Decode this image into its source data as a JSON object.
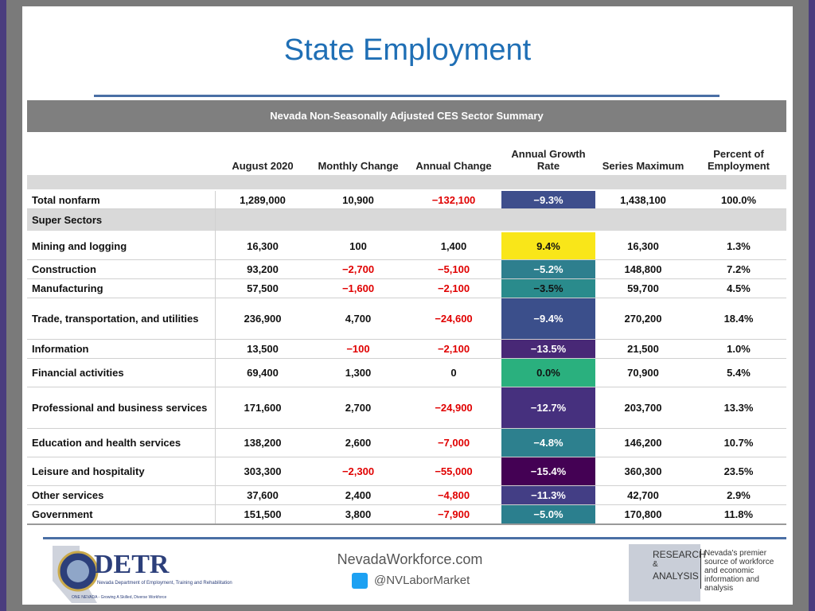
{
  "title": "State Employment",
  "table": {
    "caption": "Nevada Non-Seasonally Adjusted CES Sector Summary",
    "columns": [
      "August 2020",
      "Monthly Change",
      "Annual Change",
      "Annual Growth Rate",
      "Series Maximum",
      "Percent of Employment"
    ],
    "section_label": "Super Sectors",
    "rows": [
      {
        "label": "Total nonfarm",
        "cells": [
          "1,289,000",
          "10,900",
          "−132,100",
          "−9.3%",
          "1,438,100",
          "100.0%"
        ],
        "growth_color": "#3e4e8c"
      },
      {
        "label": "Mining and logging",
        "cells": [
          "16,300",
          "100",
          "1,400",
          "9.4%",
          "16,300",
          "1.3%"
        ],
        "growth_color": "#f9e619"
      },
      {
        "label": "Construction",
        "cells": [
          "93,200",
          "−2,700",
          "−5,100",
          "−5.2%",
          "148,800",
          "7.2%"
        ],
        "growth_color": "#2e7f8e"
      },
      {
        "label": "Manufacturing",
        "cells": [
          "57,500",
          "−1,600",
          "−2,100",
          "−3.5%",
          "59,700",
          "4.5%"
        ],
        "growth_color": "#2a8b8c"
      },
      {
        "label": "Trade, transportation, and utilities",
        "cells": [
          "236,900",
          "4,700",
          "−24,600",
          "−9.4%",
          "270,200",
          "18.4%"
        ],
        "growth_color": "#3b4f8b"
      },
      {
        "label": "Information",
        "cells": [
          "13,500",
          "−100",
          "−2,100",
          "−13.5%",
          "21,500",
          "1.0%"
        ],
        "growth_color": "#482876"
      },
      {
        "label": "Financial activities",
        "cells": [
          "69,400",
          "1,300",
          "0",
          "0.0%",
          "70,900",
          "5.4%"
        ],
        "growth_color": "#2ab07e"
      },
      {
        "label": "Professional and business services",
        "cells": [
          "171,600",
          "2,700",
          "−24,900",
          "−12.7%",
          "203,700",
          "13.3%"
        ],
        "growth_color": "#46307e"
      },
      {
        "label": "Education and health services",
        "cells": [
          "138,200",
          "2,600",
          "−7,000",
          "−4.8%",
          "146,200",
          "10.7%"
        ],
        "growth_color": "#2d808e"
      },
      {
        "label": "Leisure and hospitality",
        "cells": [
          "303,300",
          "−2,300",
          "−55,000",
          "−15.4%",
          "360,300",
          "23.5%"
        ],
        "growth_color": "#440154"
      },
      {
        "label": "Other services",
        "cells": [
          "37,600",
          "2,400",
          "−4,800",
          "−11.3%",
          "42,700",
          "2.9%"
        ],
        "growth_color": "#433e85"
      },
      {
        "label": "Government",
        "cells": [
          "151,500",
          "3,800",
          "−7,900",
          "−5.0%",
          "170,800",
          "11.8%"
        ],
        "growth_color": "#2b7f8e"
      }
    ]
  },
  "footer": {
    "detr": "DETR",
    "detr_name": "Nevada Department of Employment, Training and Rehabilitation",
    "detr_tagline": "ONE NEVADA - Growing A Skilled, Diverse Workforce",
    "website": "NevadaWorkforce.com",
    "twitter": "@NVLaborMarket",
    "ra_research": "RESEARCH",
    "ra_amp": "&",
    "ra_analysis": "ANALYSIS",
    "ra_tagline": "Nevada's premier source of workforce and economic information and analysis"
  }
}
